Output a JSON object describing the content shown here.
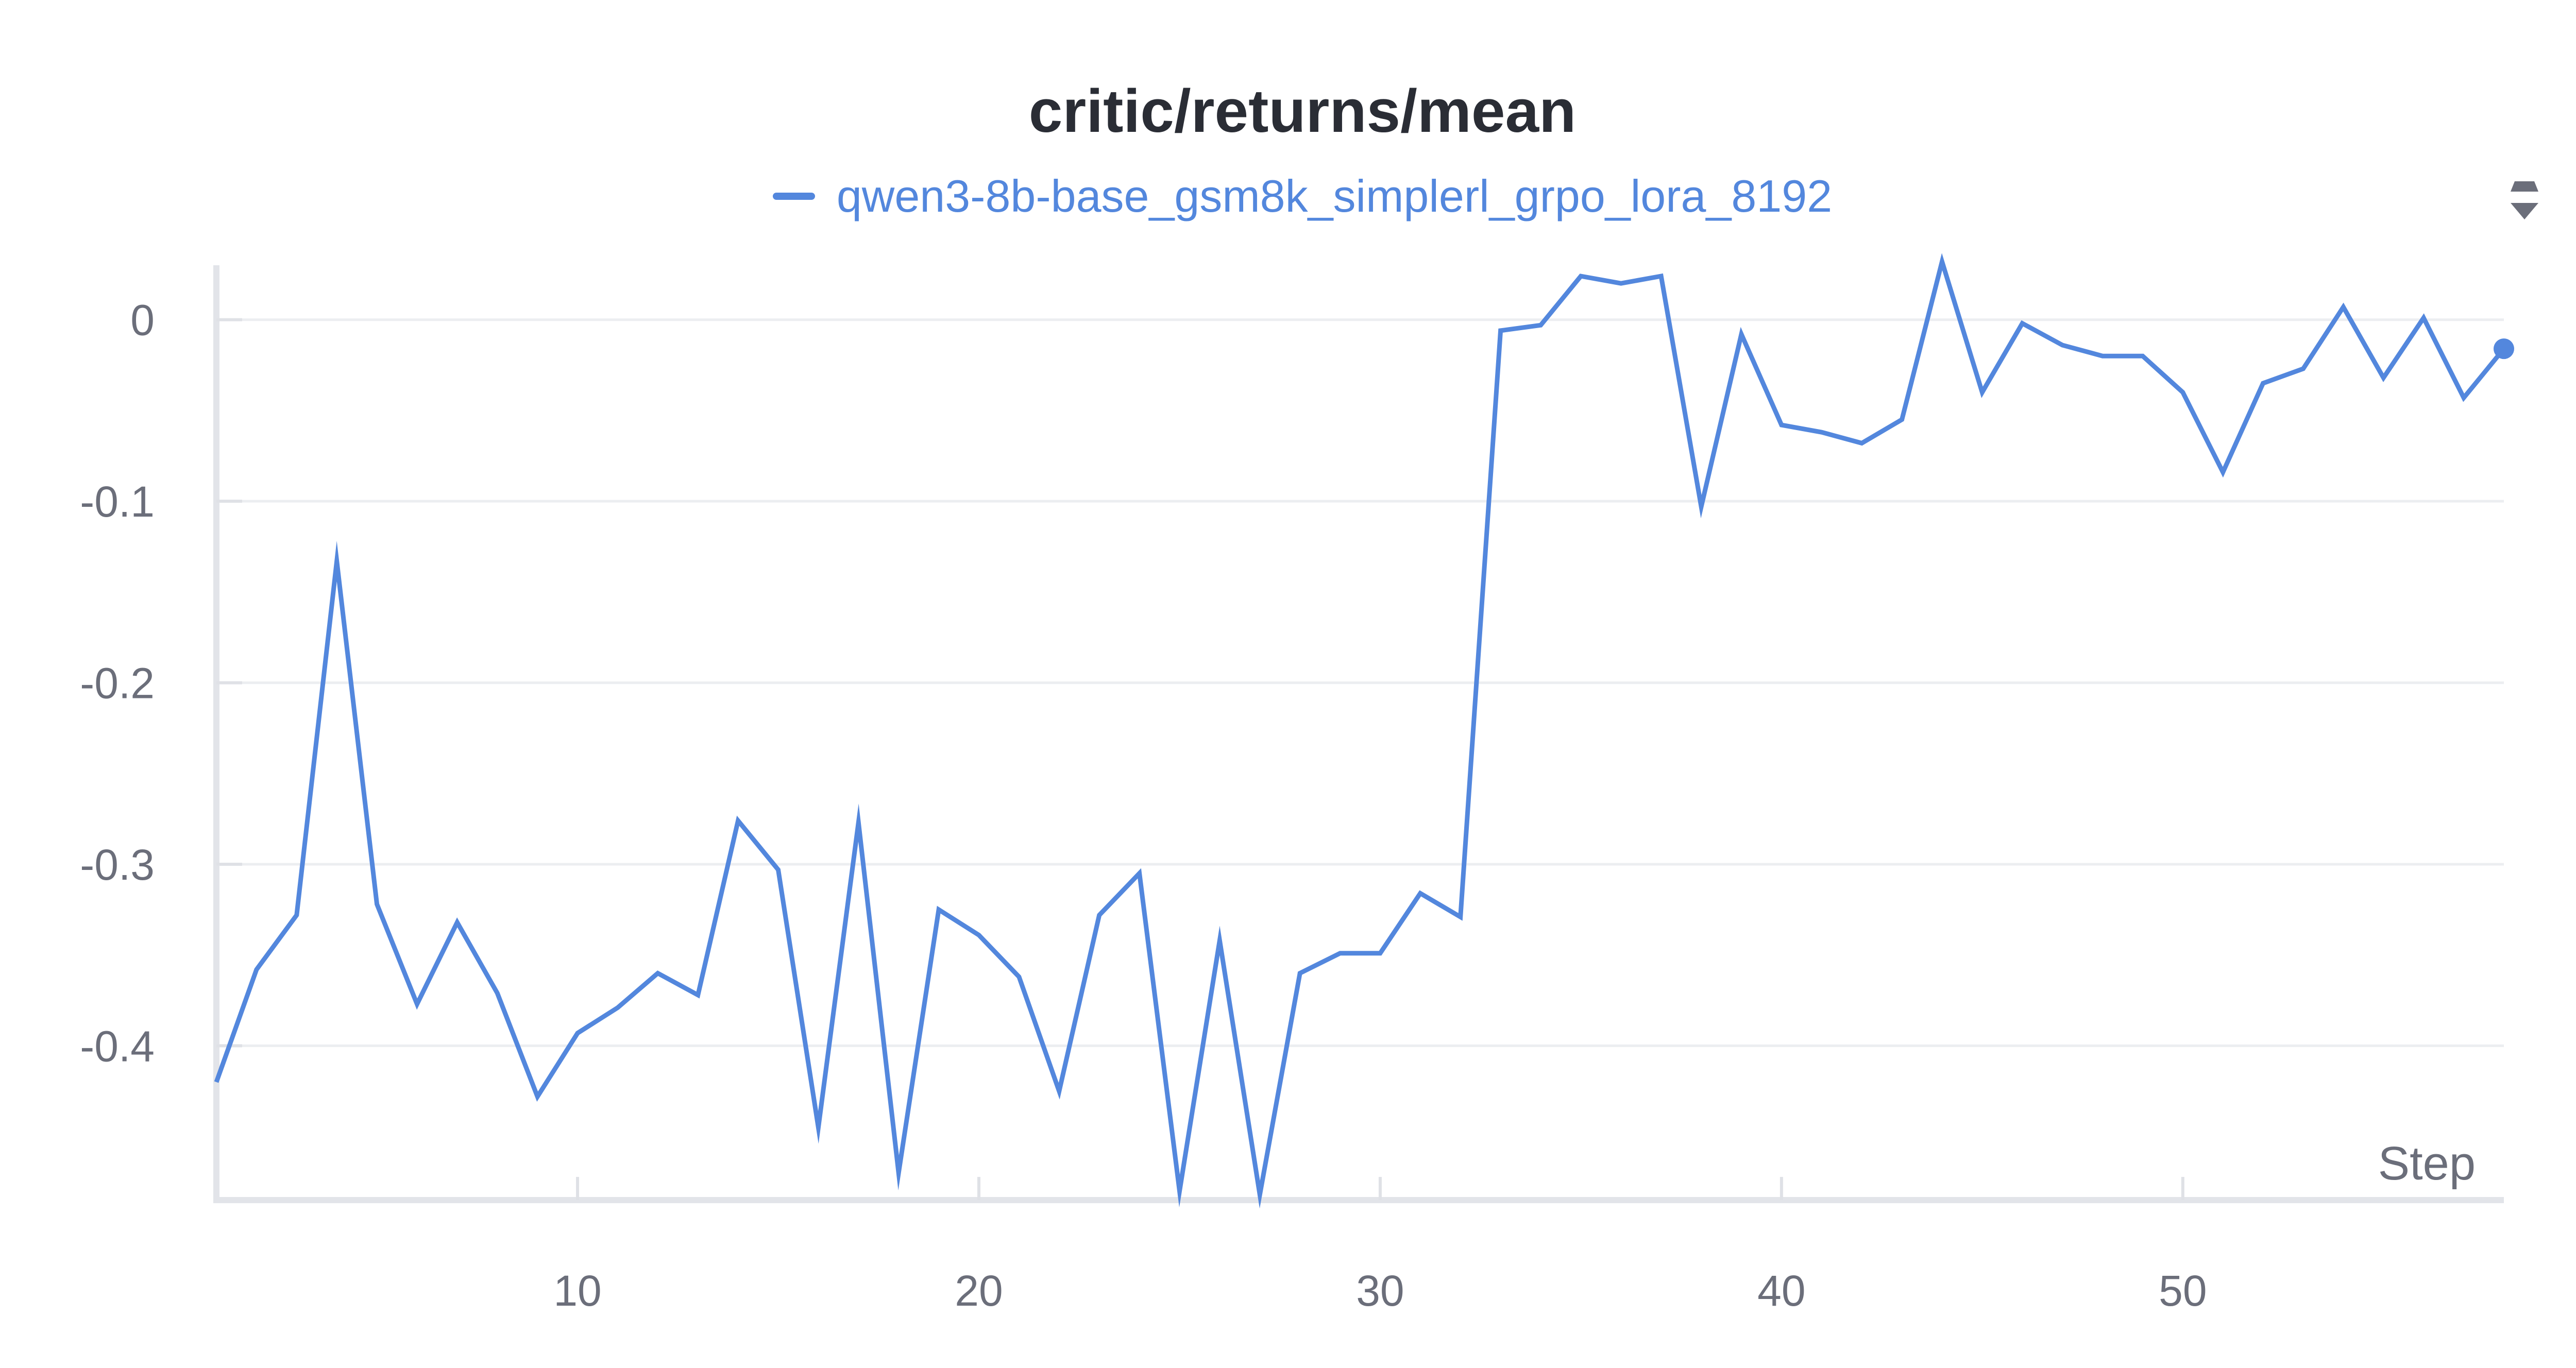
{
  "chart_data": {
    "type": "line",
    "title": "critic/returns/mean",
    "xlabel": "Step",
    "ylabel": "",
    "xlim": [
      1,
      58
    ],
    "ylim": [
      -0.485,
      0.03
    ],
    "x_ticks": [
      10,
      20,
      30,
      40,
      50
    ],
    "y_ticks": [
      0,
      -0.1,
      -0.2,
      -0.3,
      -0.4
    ],
    "x_tick_labels": [
      "10",
      "20",
      "30",
      "40",
      "50"
    ],
    "y_tick_labels": [
      "0",
      "-0.1",
      "-0.2",
      "-0.3",
      "-0.4"
    ],
    "grid": "horizontal",
    "legend_position": "top",
    "series": [
      {
        "name": "qwen3-8b-base_gsm8k_simplerl_grpo_lora_8192",
        "color": "#5387dd",
        "x": [
          1,
          2,
          3,
          4,
          5,
          6,
          7,
          8,
          9,
          10,
          11,
          12,
          13,
          14,
          15,
          16,
          17,
          18,
          19,
          20,
          21,
          22,
          23,
          24,
          25,
          26,
          27,
          28,
          29,
          30,
          31,
          32,
          33,
          34,
          35,
          36,
          37,
          38,
          39,
          40,
          41,
          42,
          43,
          44,
          45,
          46,
          47,
          48,
          49,
          50,
          51,
          52,
          53,
          54,
          55,
          56,
          57,
          58
        ],
        "y": [
          -0.42,
          -0.358,
          -0.328,
          -0.133,
          -0.322,
          -0.377,
          -0.332,
          -0.371,
          -0.428,
          -0.393,
          -0.379,
          -0.36,
          -0.372,
          -0.276,
          -0.303,
          -0.445,
          -0.277,
          -0.47,
          -0.325,
          -0.339,
          -0.362,
          -0.425,
          -0.328,
          -0.305,
          -0.48,
          -0.342,
          -0.482,
          -0.36,
          -0.349,
          -0.349,
          -0.316,
          -0.329,
          -0.006,
          -0.003,
          0.024,
          0.02,
          0.024,
          -0.103,
          -0.008,
          -0.058,
          -0.062,
          -0.068,
          -0.055,
          0.032,
          -0.04,
          -0.002,
          -0.014,
          -0.02,
          -0.02,
          -0.04,
          -0.084,
          -0.035,
          -0.027,
          0.007,
          -0.032,
          0.001,
          -0.043,
          -0.016
        ]
      }
    ]
  },
  "icons": {
    "collapse": "collapse-expand-icon"
  }
}
